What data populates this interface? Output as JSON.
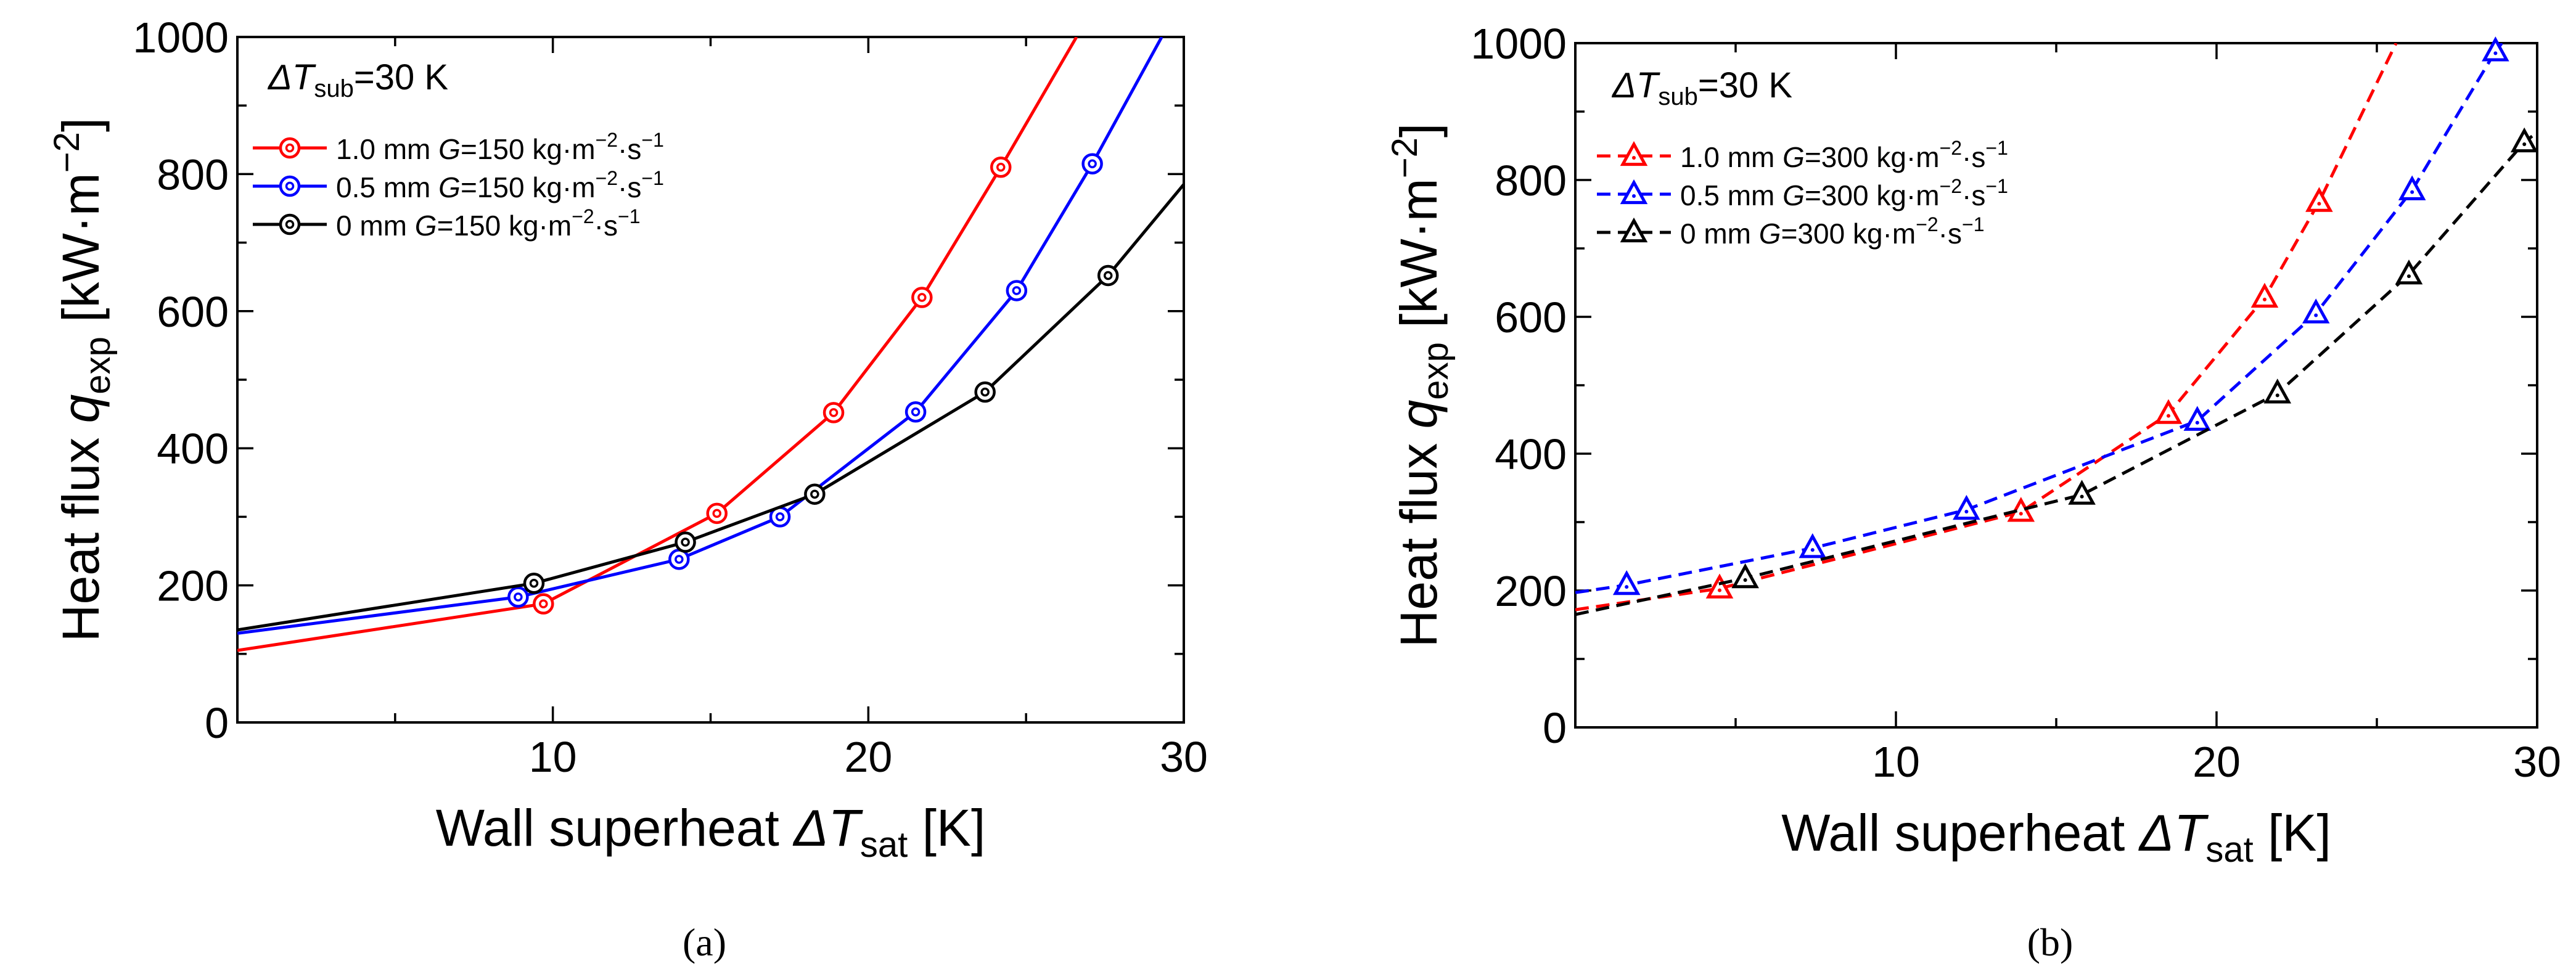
{
  "chart_data": [
    {
      "type": "line",
      "panel_label": "(a)",
      "panel_letter": "a",
      "xlabel": "Wall superheat ΔT_sat [K]",
      "xlabel_parts": {
        "main": "Wall superheat ",
        "sym": "ΔT",
        "sub": "sat",
        "unit": " [K]"
      },
      "ylabel": "Heat flux q_exp [kW·m⁻²]",
      "ylabel_parts": {
        "main": "Heat flux ",
        "sym": "q",
        "sub": "exp",
        "unit": " [kW·m",
        "sup": "−2",
        "close": "]"
      },
      "xlim": [
        0,
        30
      ],
      "ylim": [
        0,
        1000
      ],
      "xticks": [
        10,
        20,
        30
      ],
      "yticks": [
        0,
        200,
        400,
        600,
        800,
        1000
      ],
      "condition": {
        "sym": "ΔT",
        "sub": "sub",
        "rest": "=30 K"
      },
      "legend_position": "top-left",
      "line_style": "solid",
      "marker": "double-circle",
      "series": [
        {
          "name": "1.0 mm G=150 kg·m⁻²·s⁻¹",
          "label": {
            "size": "1.0 mm ",
            "G": "G",
            "rest": "=150 kg·m",
            "sup1": "−2",
            "mid": "·s",
            "sup2": "−1"
          },
          "color": "#ff0000",
          "points": [
            [
              9.7,
              173
            ],
            [
              15.2,
              305
            ],
            [
              18.9,
              452
            ],
            [
              21.7,
              620
            ],
            [
              24.2,
              810
            ]
          ],
          "curve": [
            [
              0,
              105
            ],
            [
              9.7,
              173
            ],
            [
              15.2,
              305
            ],
            [
              18.9,
              452
            ],
            [
              21.7,
              620
            ],
            [
              24.2,
              810
            ],
            [
              26.6,
              1000
            ]
          ]
        },
        {
          "name": "0.5 mm G=150 kg·m⁻²·s⁻¹",
          "label": {
            "size": "0.5 mm ",
            "G": "G",
            "rest": "=150 kg·m",
            "sup1": "−2",
            "mid": "·s",
            "sup2": "−1"
          },
          "color": "#0000ff",
          "points": [
            [
              8.9,
              183
            ],
            [
              14.0,
              238
            ],
            [
              17.2,
              300
            ],
            [
              21.5,
              453
            ],
            [
              24.7,
              630
            ],
            [
              27.1,
              815
            ]
          ],
          "curve": [
            [
              0,
              130
            ],
            [
              8.9,
              183
            ],
            [
              14.0,
              238
            ],
            [
              17.2,
              300
            ],
            [
              21.5,
              453
            ],
            [
              24.7,
              630
            ],
            [
              27.1,
              815
            ],
            [
              29.3,
              1000
            ]
          ]
        },
        {
          "name": "0   mm G=150 kg·m⁻²·s⁻¹",
          "label": {
            "size": "0    mm ",
            "G": "G",
            "rest": "=150 kg·m",
            "sup1": "−2",
            "mid": "·s",
            "sup2": "−1"
          },
          "color": "#000000",
          "points": [
            [
              9.4,
              203
            ],
            [
              14.2,
              263
            ],
            [
              18.3,
              333
            ],
            [
              23.7,
              482
            ],
            [
              27.6,
              652
            ]
          ],
          "curve": [
            [
              0,
              135
            ],
            [
              9.4,
              203
            ],
            [
              14.2,
              263
            ],
            [
              18.3,
              333
            ],
            [
              23.7,
              482
            ],
            [
              27.6,
              652
            ],
            [
              30,
              785
            ]
          ]
        }
      ]
    },
    {
      "type": "line",
      "panel_label": "(b)",
      "panel_letter": "b",
      "xlabel": "Wall superheat ΔT_sat [K]",
      "xlabel_parts": {
        "main": "Wall superheat ",
        "sym": "ΔT",
        "sub": "sat",
        "unit": " [K]"
      },
      "ylabel": "Heat flux q_exp [kW·m⁻²]",
      "ylabel_parts": {
        "main": "Heat flux ",
        "sym": "q",
        "sub": "exp",
        "unit": " [kW·m",
        "sup": "−2",
        "close": "]"
      },
      "xlim": [
        0,
        30
      ],
      "ylim": [
        0,
        1000
      ],
      "xticks": [
        10,
        20,
        30
      ],
      "yticks": [
        0,
        200,
        400,
        600,
        800,
        1000
      ],
      "condition": {
        "sym": "ΔT",
        "sub": "sub",
        "rest": "=30 K"
      },
      "legend_position": "top-left",
      "line_style": "dashed",
      "marker": "double-triangle",
      "series": [
        {
          "name": "1.0 mm G=300 kg·m⁻²·s⁻¹",
          "label": {
            "size": "1.0 mm ",
            "G": "G",
            "rest": "=300 kg·m",
            "sup1": "−2",
            "mid": "·s",
            "sup2": "−1"
          },
          "color": "#ff0000",
          "points": [
            [
              4.5,
              203
            ],
            [
              13.9,
              315
            ],
            [
              18.5,
              458
            ],
            [
              21.5,
              628
            ],
            [
              23.2,
              768
            ]
          ],
          "curve": [
            [
              0,
              172
            ],
            [
              4.5,
              203
            ],
            [
              13.9,
              315
            ],
            [
              18.5,
              458
            ],
            [
              21.5,
              628
            ],
            [
              23.2,
              768
            ],
            [
              25.6,
              1000
            ]
          ]
        },
        {
          "name": "0.5 mm G=300 kg·m⁻²·s⁻¹",
          "label": {
            "size": "0.5 mm ",
            "G": "G",
            "rest": "=300 kg·m",
            "sup1": "−2",
            "mid": "·s",
            "sup2": "−1"
          },
          "color": "#0000ff",
          "points": [
            [
              1.6,
              208
            ],
            [
              7.4,
              262
            ],
            [
              12.2,
              318
            ],
            [
              19.4,
              448
            ],
            [
              23.1,
              605
            ],
            [
              26.1,
              785
            ],
            [
              28.7,
              988
            ]
          ],
          "curve": [
            [
              0,
              197
            ],
            [
              1.6,
              208
            ],
            [
              7.4,
              262
            ],
            [
              12.2,
              318
            ],
            [
              19.4,
              448
            ],
            [
              23.1,
              605
            ],
            [
              26.1,
              785
            ],
            [
              28.7,
              988
            ],
            [
              28.9,
              1000
            ]
          ]
        },
        {
          "name": "0   mm G=300 kg·m⁻²·s⁻¹",
          "label": {
            "size": "0    mm ",
            "G": "G",
            "rest": "=300 kg·m",
            "sup1": "−2",
            "mid": "·s",
            "sup2": "−1"
          },
          "color": "#000000",
          "points": [
            [
              5.3,
              218
            ],
            [
              15.8,
              340
            ],
            [
              21.9,
              488
            ],
            [
              26.0,
              662
            ],
            [
              29.6,
              855
            ]
          ],
          "curve": [
            [
              0,
              165
            ],
            [
              5.3,
              218
            ],
            [
              15.8,
              340
            ],
            [
              21.9,
              488
            ],
            [
              26.0,
              662
            ],
            [
              29.6,
              855
            ],
            [
              30,
              870
            ]
          ]
        }
      ]
    }
  ]
}
